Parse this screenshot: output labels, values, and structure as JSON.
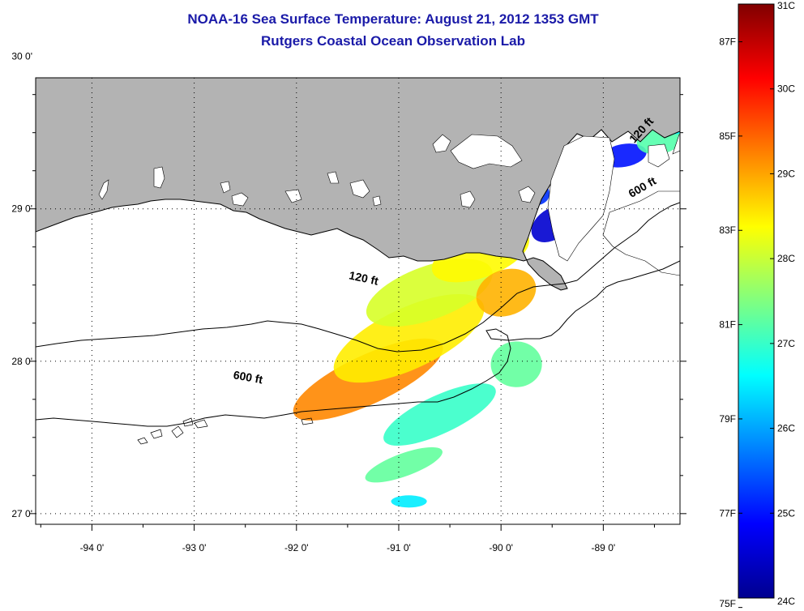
{
  "title": "NOAA-16 Sea Surface Temperature:  August 21, 2012 1353 GMT",
  "subtitle": "Rutgers Coastal Ocean Observation Lab",
  "map": {
    "lon_range": [
      -94.55,
      -88.25
    ],
    "lat_range": [
      26.93,
      29.86
    ],
    "lon_ticks": [
      {
        "value": -94,
        "label": "-94 0'"
      },
      {
        "value": -93,
        "label": "-93 0'"
      },
      {
        "value": -92,
        "label": "-92 0'"
      },
      {
        "value": -91,
        "label": "-91 0'"
      },
      {
        "value": -90,
        "label": "-90 0'"
      },
      {
        "value": -89,
        "label": "-89 0'"
      }
    ],
    "lat_ticks": [
      {
        "value": 30,
        "label": "30 0'"
      },
      {
        "value": 29,
        "label": "29 0'"
      },
      {
        "value": 28,
        "label": "28 0'"
      },
      {
        "value": 27,
        "label": "27 0'"
      }
    ],
    "land_color": "#b3b3b3",
    "contour_labels": [
      {
        "text": "120 ft",
        "lon": -91.35,
        "lat": 28.52,
        "angle": 12
      },
      {
        "text": "600 ft",
        "lon": -92.48,
        "lat": 27.87,
        "angle": 10
      },
      {
        "text": "120 ft",
        "lon": -88.6,
        "lat": 29.5,
        "angle": -48
      },
      {
        "text": "600 ft",
        "lon": -88.6,
        "lat": 29.12,
        "angle": -30
      }
    ]
  },
  "colorbar": {
    "min_c": 24,
    "max_c": 31,
    "colors": [
      "#00008f",
      "#0000ff",
      "#0080ff",
      "#00ffff",
      "#80ff80",
      "#ffff00",
      "#ff8000",
      "#ff0000",
      "#800000"
    ],
    "c_ticks": [
      {
        "value": 31,
        "label": "31C"
      },
      {
        "value": 30,
        "label": "30C"
      },
      {
        "value": 29,
        "label": "29C"
      },
      {
        "value": 28,
        "label": "28C"
      },
      {
        "value": 27,
        "label": "27C"
      },
      {
        "value": 26,
        "label": "26C"
      },
      {
        "value": 25,
        "label": "25C"
      },
      {
        "value": 24,
        "label": "24C"
      }
    ],
    "f_ticks": [
      {
        "value": 87,
        "label": "87F"
      },
      {
        "value": 85,
        "label": "85F"
      },
      {
        "value": 83,
        "label": "83F"
      },
      {
        "value": 81,
        "label": "81F"
      },
      {
        "value": 79,
        "label": "79F"
      },
      {
        "value": 77,
        "label": "77F"
      },
      {
        "value": 75,
        "label": "75F"
      }
    ]
  }
}
